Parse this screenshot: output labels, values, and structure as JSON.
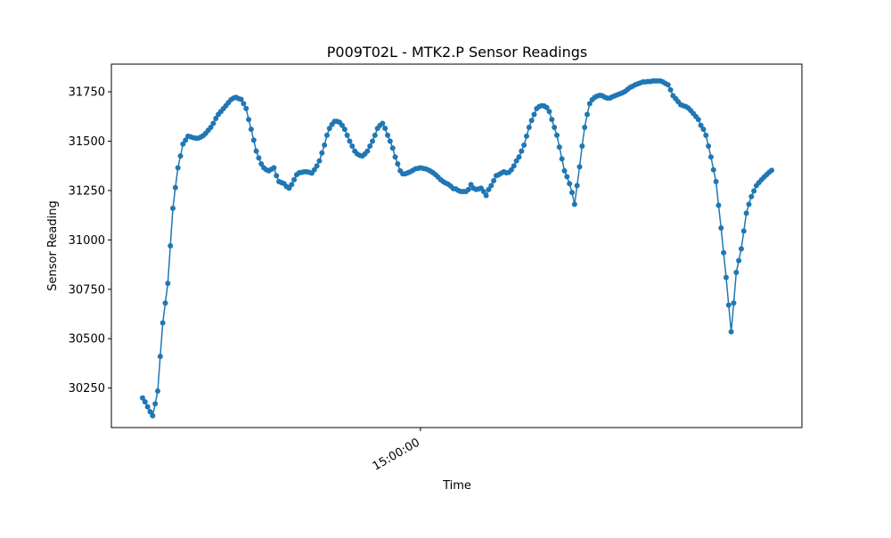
{
  "chart_data": {
    "type": "line",
    "title": "P009T02L - MTK2.P Sensor Readings",
    "xlabel": "Time",
    "ylabel": "Sensor Reading",
    "x_tick_labels": [
      {
        "label": "15:00:00",
        "x_index": 110
      }
    ],
    "ylim": [
      30050,
      31890
    ],
    "y_ticks": [
      30250,
      30500,
      30750,
      31000,
      31250,
      31500,
      31750
    ],
    "grid": false,
    "legend": "none",
    "colors": {
      "series": "#1f77b4"
    },
    "series": [
      {
        "x_start": 0,
        "x_step": 1,
        "values": [
          30200,
          30180,
          30155,
          30130,
          30110,
          30170,
          30235,
          30410,
          30580,
          30680,
          30780,
          30970,
          31160,
          31265,
          31365,
          31425,
          31485,
          31505,
          31525,
          31522,
          31518,
          31515,
          31515,
          31520,
          31528,
          31540,
          31555,
          31570,
          31590,
          31615,
          31635,
          31650,
          31665,
          31680,
          31695,
          31710,
          31718,
          31722,
          31715,
          31712,
          31690,
          31665,
          31610,
          31560,
          31505,
          31450,
          31415,
          31385,
          31365,
          31355,
          31350,
          31358,
          31365,
          31325,
          31295,
          31290,
          31285,
          31270,
          31262,
          31280,
          31305,
          31330,
          31340,
          31342,
          31345,
          31345,
          31342,
          31338,
          31355,
          31375,
          31400,
          31440,
          31480,
          31530,
          31565,
          31585,
          31600,
          31600,
          31595,
          31580,
          31560,
          31530,
          31500,
          31475,
          31450,
          31435,
          31428,
          31425,
          31435,
          31450,
          31475,
          31500,
          31530,
          31565,
          31580,
          31590,
          31565,
          31530,
          31500,
          31465,
          31420,
          31385,
          31350,
          31335,
          31335,
          31340,
          31345,
          31352,
          31360,
          31362,
          31365,
          31362,
          31360,
          31355,
          31348,
          31340,
          31330,
          31318,
          31305,
          31295,
          31288,
          31282,
          31272,
          31260,
          31258,
          31250,
          31245,
          31245,
          31245,
          31255,
          31280,
          31262,
          31255,
          31258,
          31262,
          31245,
          31225,
          31255,
          31275,
          31300,
          31325,
          31330,
          31338,
          31345,
          31340,
          31342,
          31355,
          31375,
          31400,
          31420,
          31450,
          31480,
          31525,
          31570,
          31605,
          31635,
          31665,
          31675,
          31680,
          31678,
          31670,
          31650,
          31610,
          31570,
          31530,
          31470,
          31410,
          31350,
          31320,
          31285,
          31240,
          31180,
          31275,
          31370,
          31475,
          31570,
          31635,
          31690,
          31710,
          31722,
          31728,
          31732,
          31730,
          31722,
          31718,
          31718,
          31725,
          31730,
          31735,
          31740,
          31745,
          31752,
          31762,
          31772,
          31778,
          31785,
          31790,
          31795,
          31800,
          31800,
          31802,
          31802,
          31805,
          31805,
          31805,
          31805,
          31800,
          31792,
          31785,
          31760,
          31730,
          31715,
          31700,
          31685,
          31680,
          31675,
          31668,
          31655,
          31640,
          31625,
          31610,
          31580,
          31560,
          31530,
          31475,
          31420,
          31355,
          31295,
          31175,
          31060,
          30935,
          30810,
          30670,
          30535,
          30680,
          30835,
          30895,
          30955,
          31045,
          31135,
          31180,
          31220,
          31248,
          31275,
          31290,
          31305,
          31318,
          31330,
          31342,
          31352
        ]
      }
    ]
  }
}
